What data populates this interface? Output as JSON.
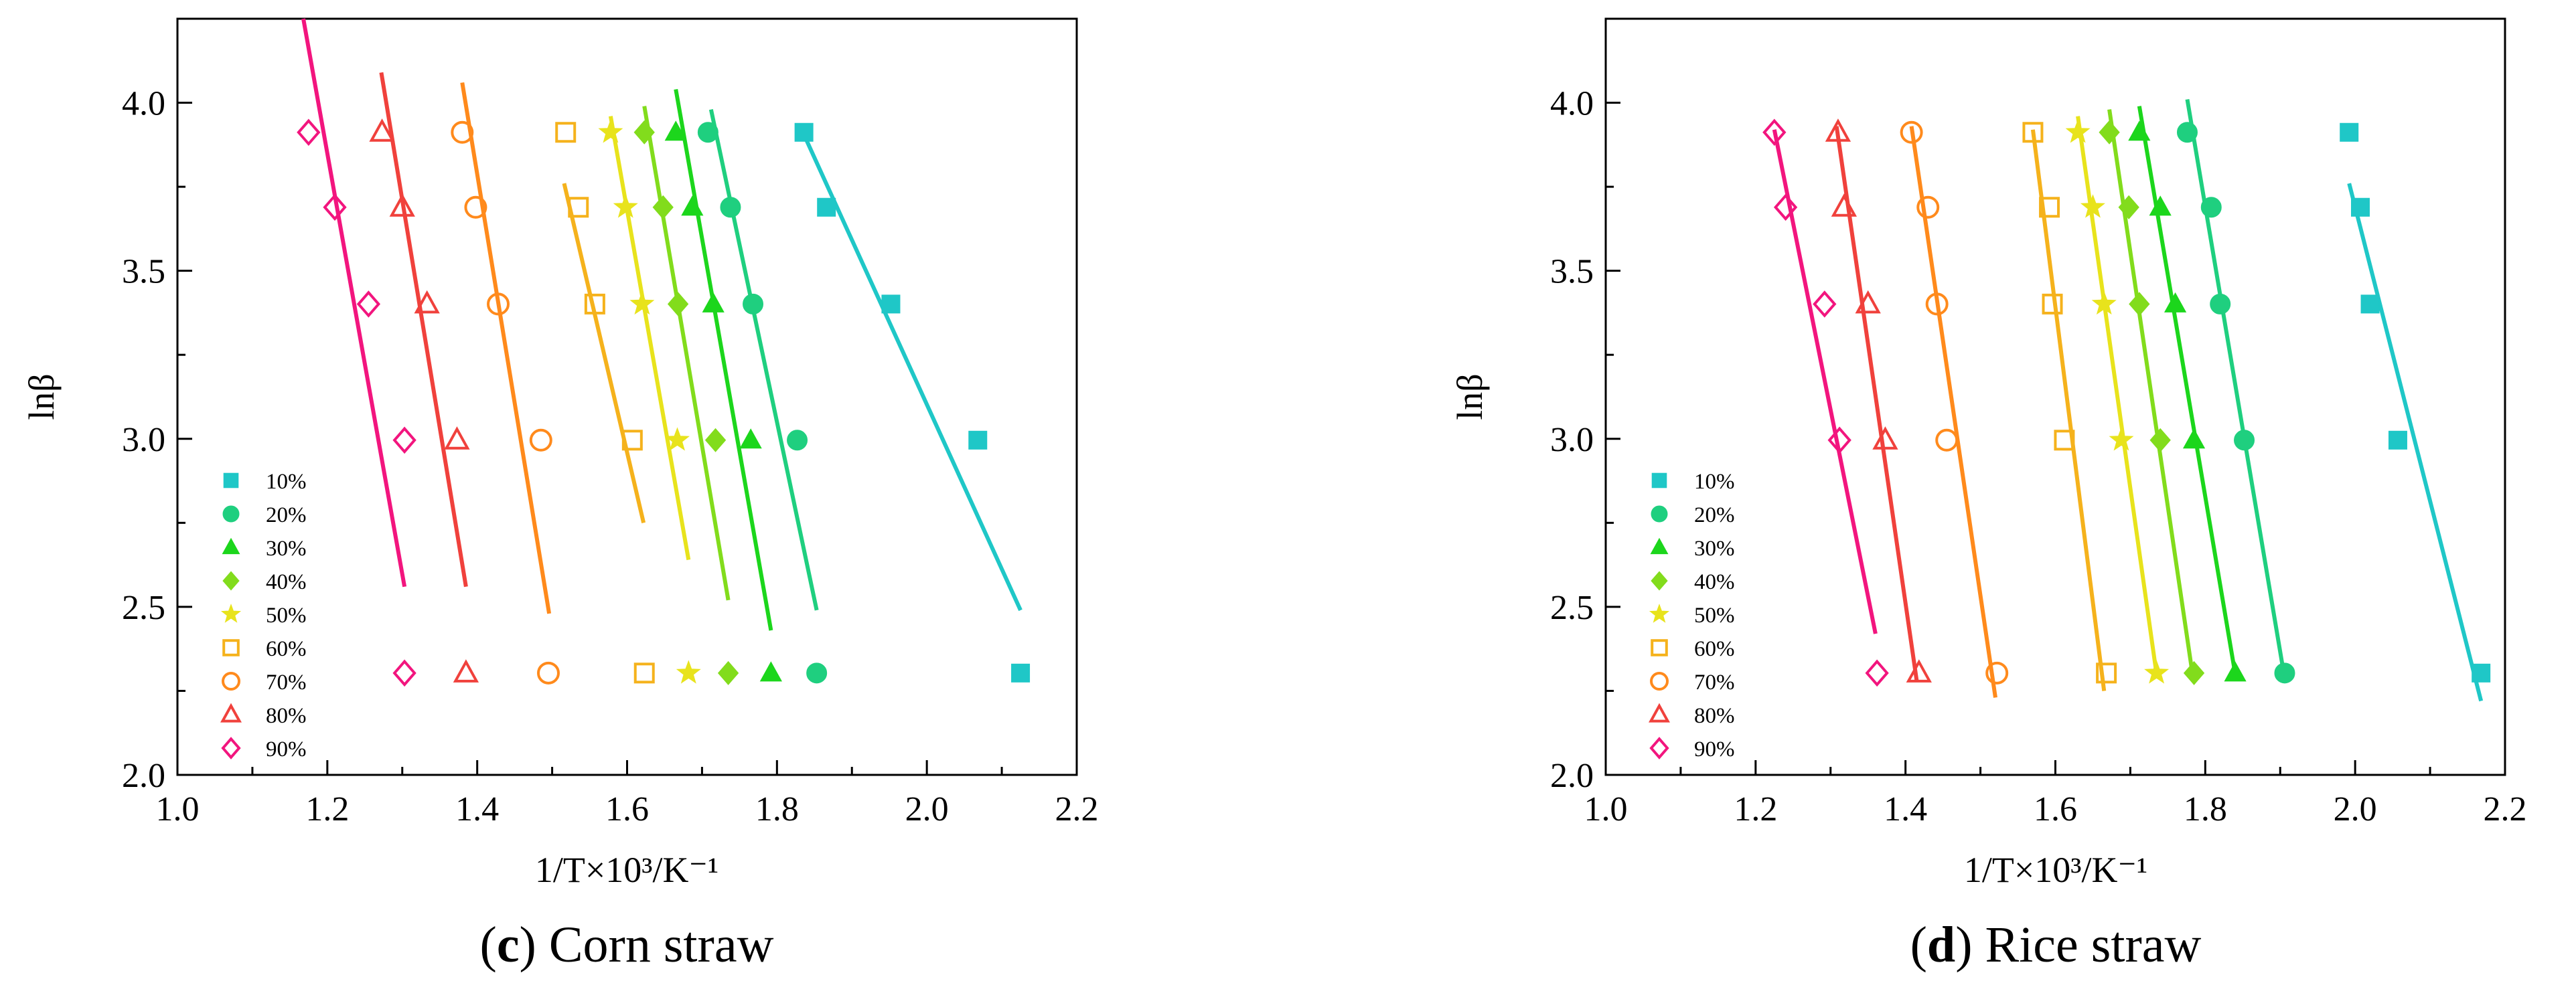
{
  "panels": [
    {
      "id": "c",
      "caption_letter": "c",
      "caption_text": "Corn straw",
      "chart_data": {
        "type": "scatter",
        "xlabel": "1/T×10³/K⁻¹",
        "ylabel": "lnβ",
        "xlim": [
          1.0,
          2.2
        ],
        "ylim": [
          2.0,
          4.25
        ],
        "xticks": [
          "1.0",
          "1.2",
          "1.4",
          "1.6",
          "1.8",
          "2.0",
          "2.2"
        ],
        "yticks": [
          "2.0",
          "2.5",
          "3.0",
          "3.5",
          "4.0"
        ],
        "legend_position": "lower-left",
        "series": [
          {
            "name": "10%",
            "color": "#1fc7c7",
            "marker": "square-filled",
            "points": [
              [
                2.125,
                2.303
              ],
              [
                2.068,
                2.996
              ],
              [
                1.952,
                3.401
              ],
              [
                1.866,
                3.689
              ],
              [
                1.836,
                3.912
              ]
            ],
            "fit": [
              [
                1.835,
                3.91
              ],
              [
                2.125,
                2.49
              ]
            ]
          },
          {
            "name": "20%",
            "color": "#1fcf7f",
            "marker": "circle-filled",
            "points": [
              [
                1.853,
                2.303
              ],
              [
                1.827,
                2.996
              ],
              [
                1.768,
                3.401
              ],
              [
                1.738,
                3.689
              ],
              [
                1.708,
                3.912
              ]
            ],
            "fit": [
              [
                1.712,
                3.98
              ],
              [
                1.853,
                2.49
              ]
            ]
          },
          {
            "name": "30%",
            "color": "#1cd61c",
            "marker": "triangle-filled",
            "points": [
              [
                1.792,
                2.303
              ],
              [
                1.765,
                2.996
              ],
              [
                1.715,
                3.401
              ],
              [
                1.687,
                3.689
              ],
              [
                1.665,
                3.912
              ]
            ],
            "fit": [
              [
                1.665,
                4.04
              ],
              [
                1.792,
                2.43
              ]
            ]
          },
          {
            "name": "40%",
            "color": "#82dc1c",
            "marker": "diamond-filled",
            "points": [
              [
                1.735,
                2.303
              ],
              [
                1.718,
                2.996
              ],
              [
                1.668,
                3.401
              ],
              [
                1.648,
                3.689
              ],
              [
                1.623,
                3.912
              ]
            ],
            "fit": [
              [
                1.623,
                3.99
              ],
              [
                1.735,
                2.52
              ]
            ]
          },
          {
            "name": "50%",
            "color": "#e8e31c",
            "marker": "star-filled",
            "points": [
              [
                1.682,
                2.303
              ],
              [
                1.667,
                2.996
              ],
              [
                1.62,
                3.401
              ],
              [
                1.598,
                3.689
              ],
              [
                1.578,
                3.912
              ]
            ],
            "fit": [
              [
                1.578,
                3.96
              ],
              [
                1.682,
                2.64
              ]
            ]
          },
          {
            "name": "60%",
            "color": "#f5b21c",
            "marker": "square-open",
            "points": [
              [
                1.623,
                2.303
              ],
              [
                1.607,
                2.996
              ],
              [
                1.557,
                3.401
              ],
              [
                1.535,
                3.689
              ],
              [
                1.518,
                3.912
              ]
            ],
            "fit": [
              [
                1.516,
                3.76
              ],
              [
                1.622,
                2.75
              ]
            ]
          },
          {
            "name": "70%",
            "color": "#ff8a1c",
            "marker": "circle-open",
            "points": [
              [
                1.495,
                2.303
              ],
              [
                1.485,
                2.996
              ],
              [
                1.428,
                3.401
              ],
              [
                1.398,
                3.689
              ],
              [
                1.38,
                3.912
              ]
            ],
            "fit": [
              [
                1.38,
                4.06
              ],
              [
                1.496,
                2.48
              ]
            ]
          },
          {
            "name": "80%",
            "color": "#f0413c",
            "marker": "triangle-open",
            "points": [
              [
                1.385,
                2.303
              ],
              [
                1.373,
                2.996
              ],
              [
                1.333,
                3.401
              ],
              [
                1.3,
                3.689
              ],
              [
                1.273,
                3.912
              ]
            ],
            "fit": [
              [
                1.272,
                4.09
              ],
              [
                1.385,
                2.56
              ]
            ]
          },
          {
            "name": "90%",
            "color": "#f2157e",
            "marker": "diamond-open",
            "points": [
              [
                1.303,
                2.303
              ],
              [
                1.303,
                2.996
              ],
              [
                1.255,
                3.401
              ],
              [
                1.21,
                3.689
              ],
              [
                1.175,
                3.912
              ]
            ],
            "fit": [
              [
                1.168,
                4.25
              ],
              [
                1.303,
                2.56
              ]
            ]
          }
        ]
      }
    },
    {
      "id": "d",
      "caption_letter": "d",
      "caption_text": "Rice straw",
      "chart_data": {
        "type": "scatter",
        "xlabel": "1/T×10³/K⁻¹",
        "ylabel": "lnβ",
        "xlim": [
          1.0,
          2.2
        ],
        "ylim": [
          2.0,
          4.25
        ],
        "xticks": [
          "1.0",
          "1.2",
          "1.4",
          "1.6",
          "1.8",
          "2.0",
          "2.2"
        ],
        "yticks": [
          "2.0",
          "2.5",
          "3.0",
          "3.5",
          "4.0"
        ],
        "legend_position": "lower-left",
        "series": [
          {
            "name": "10%",
            "color": "#1fc7c7",
            "marker": "square-filled",
            "points": [
              [
                2.168,
                2.303
              ],
              [
                2.057,
                2.996
              ],
              [
                2.02,
                3.401
              ],
              [
                2.007,
                3.689
              ],
              [
                1.992,
                3.912
              ]
            ],
            "fit": [
              [
                1.992,
                3.76
              ],
              [
                2.168,
                2.22
              ]
            ]
          },
          {
            "name": "20%",
            "color": "#1fcf7f",
            "marker": "circle-filled",
            "points": [
              [
                1.906,
                2.303
              ],
              [
                1.852,
                2.996
              ],
              [
                1.82,
                3.401
              ],
              [
                1.808,
                3.689
              ],
              [
                1.776,
                3.912
              ]
            ],
            "fit": [
              [
                1.776,
                4.01
              ],
              [
                1.905,
                2.3
              ]
            ]
          },
          {
            "name": "30%",
            "color": "#1cd61c",
            "marker": "triangle-filled",
            "points": [
              [
                1.84,
                2.303
              ],
              [
                1.785,
                2.996
              ],
              [
                1.76,
                3.401
              ],
              [
                1.74,
                3.689
              ],
              [
                1.712,
                3.912
              ]
            ],
            "fit": [
              [
                1.712,
                3.99
              ],
              [
                1.84,
                2.3
              ]
            ]
          },
          {
            "name": "40%",
            "color": "#82dc1c",
            "marker": "diamond-filled",
            "points": [
              [
                1.785,
                2.303
              ],
              [
                1.74,
                2.996
              ],
              [
                1.712,
                3.401
              ],
              [
                1.698,
                3.689
              ],
              [
                1.672,
                3.912
              ]
            ],
            "fit": [
              [
                1.672,
                3.98
              ],
              [
                1.783,
                2.3
              ]
            ]
          },
          {
            "name": "50%",
            "color": "#e8e31c",
            "marker": "star-filled",
            "points": [
              [
                1.735,
                2.303
              ],
              [
                1.688,
                2.996
              ],
              [
                1.665,
                3.401
              ],
              [
                1.65,
                3.689
              ],
              [
                1.63,
                3.912
              ]
            ],
            "fit": [
              [
                1.63,
                3.96
              ],
              [
                1.735,
                2.3
              ]
            ]
          },
          {
            "name": "60%",
            "color": "#f5b21c",
            "marker": "square-open",
            "points": [
              [
                1.668,
                2.303
              ],
              [
                1.612,
                2.996
              ],
              [
                1.596,
                3.401
              ],
              [
                1.592,
                3.689
              ],
              [
                1.57,
                3.912
              ]
            ],
            "fit": [
              [
                1.57,
                3.92
              ],
              [
                1.665,
                2.25
              ]
            ]
          },
          {
            "name": "70%",
            "color": "#ff8a1c",
            "marker": "circle-open",
            "points": [
              [
                1.522,
                2.303
              ],
              [
                1.455,
                2.996
              ],
              [
                1.442,
                3.401
              ],
              [
                1.43,
                3.689
              ],
              [
                1.408,
                3.912
              ]
            ],
            "fit": [
              [
                1.408,
                3.93
              ],
              [
                1.52,
                2.23
              ]
            ]
          },
          {
            "name": "80%",
            "color": "#f0413c",
            "marker": "triangle-open",
            "points": [
              [
                1.418,
                2.303
              ],
              [
                1.373,
                2.996
              ],
              [
                1.35,
                3.401
              ],
              [
                1.318,
                3.689
              ],
              [
                1.31,
                3.912
              ]
            ],
            "fit": [
              [
                1.308,
                3.93
              ],
              [
                1.415,
                2.28
              ]
            ]
          },
          {
            "name": "90%",
            "color": "#f2157e",
            "marker": "diamond-open",
            "points": [
              [
                1.362,
                2.303
              ],
              [
                1.312,
                2.996
              ],
              [
                1.292,
                3.401
              ],
              [
                1.24,
                3.689
              ],
              [
                1.225,
                3.912
              ]
            ],
            "fit": [
              [
                1.225,
                3.92
              ],
              [
                1.36,
                2.42
              ]
            ]
          }
        ]
      }
    }
  ]
}
